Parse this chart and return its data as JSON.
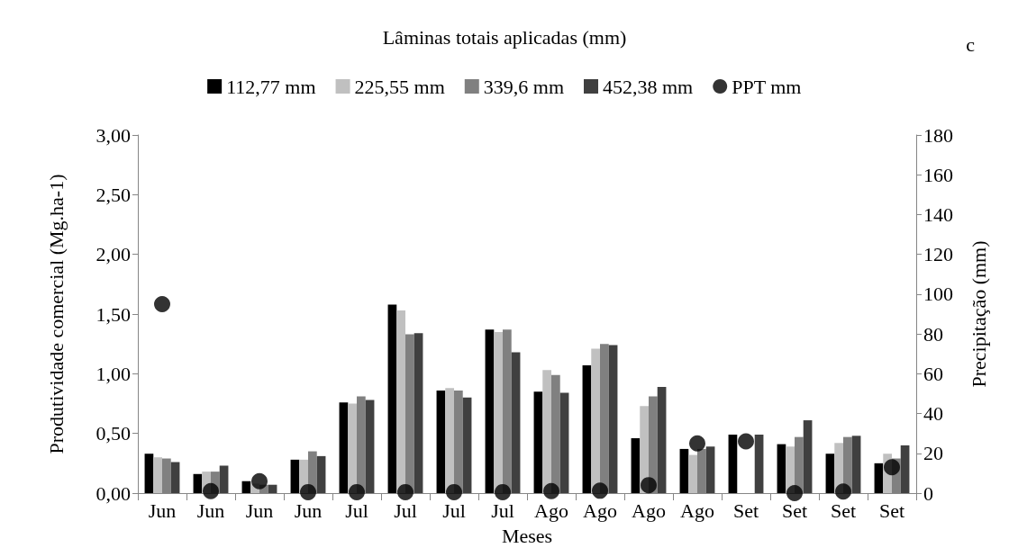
{
  "chart_data": {
    "type": "bar",
    "legend_title": "Lâminas totais aplicadas (mm)",
    "annotations": [
      "c"
    ],
    "xlabel": "Meses",
    "ylabel": "Produtividade comercial (Mg.ha-1)",
    "y2label": "Precipitação (mm)",
    "categories": [
      "Jun",
      "Jun",
      "Jun",
      "Jun",
      "Jul",
      "Jul",
      "Jul",
      "Jul",
      "Ago",
      "Ago",
      "Ago",
      "Ago",
      "Set",
      "Set",
      "Set",
      "Set"
    ],
    "series": [
      {
        "name": "112,77 mm",
        "color": "#000000",
        "values": [
          0.33,
          0.16,
          0.1,
          0.28,
          0.76,
          1.58,
          0.86,
          1.37,
          0.85,
          1.07,
          0.46,
          0.37,
          0.49,
          0.41,
          0.33,
          0.25
        ]
      },
      {
        "name": "225,55 mm",
        "color": "#c0c0c0",
        "values": [
          0.3,
          0.18,
          0.08,
          0.28,
          0.75,
          1.53,
          0.88,
          1.35,
          1.03,
          1.21,
          0.73,
          0.32,
          null,
          0.39,
          0.42,
          0.33
        ]
      },
      {
        "name": "339,6 mm",
        "color": "#808080",
        "values": [
          0.29,
          0.18,
          0.07,
          0.35,
          0.81,
          1.33,
          0.86,
          1.37,
          0.99,
          1.25,
          0.81,
          0.37,
          null,
          0.47,
          0.47,
          0.29
        ]
      },
      {
        "name": "452,38 mm",
        "color": "#404040",
        "values": [
          0.26,
          0.23,
          0.07,
          0.31,
          0.78,
          1.34,
          0.8,
          1.18,
          0.84,
          1.24,
          0.89,
          0.39,
          0.49,
          0.61,
          0.48,
          0.4
        ]
      },
      {
        "name": "PPT mm",
        "type": "scatter",
        "axis": "y2",
        "marker": "circle",
        "color": "#000000",
        "values": [
          95,
          1,
          6,
          0.5,
          0.5,
          0.5,
          0.5,
          0.5,
          1,
          1.2,
          4,
          25,
          26,
          0,
          0.8,
          13
        ]
      }
    ],
    "ylim": [
      0,
      3
    ],
    "yticks": [
      {
        "value": 0,
        "label": "0,00"
      },
      {
        "value": 0.5,
        "label": "0,50"
      },
      {
        "value": 1,
        "label": "1,00"
      },
      {
        "value": 1.5,
        "label": "1,50"
      },
      {
        "value": 2,
        "label": "2,00"
      },
      {
        "value": 2.5,
        "label": "2,50"
      },
      {
        "value": 3,
        "label": "3,00"
      }
    ],
    "y2lim": [
      0,
      180
    ],
    "y2ticks": [
      0,
      20,
      40,
      60,
      80,
      100,
      120,
      140,
      160,
      180
    ],
    "grid": false,
    "legend": "top"
  }
}
